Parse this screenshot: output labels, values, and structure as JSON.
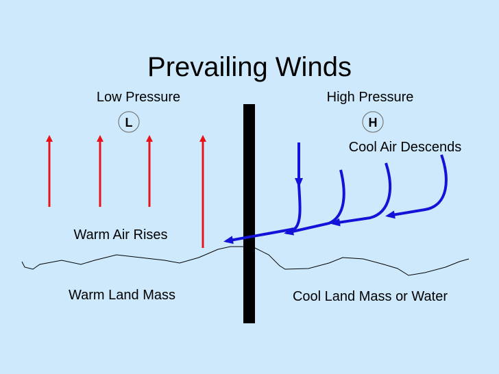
{
  "title": "Prevailing Winds",
  "left": {
    "pressure": "Low Pressure",
    "symbol": "L",
    "air": "Warm Air Rises",
    "land": "Warm Land Mass"
  },
  "right": {
    "pressure": "High Pressure",
    "symbol": "H",
    "air": "Cool Air Descends",
    "land": "Cool Land Mass or Water"
  }
}
